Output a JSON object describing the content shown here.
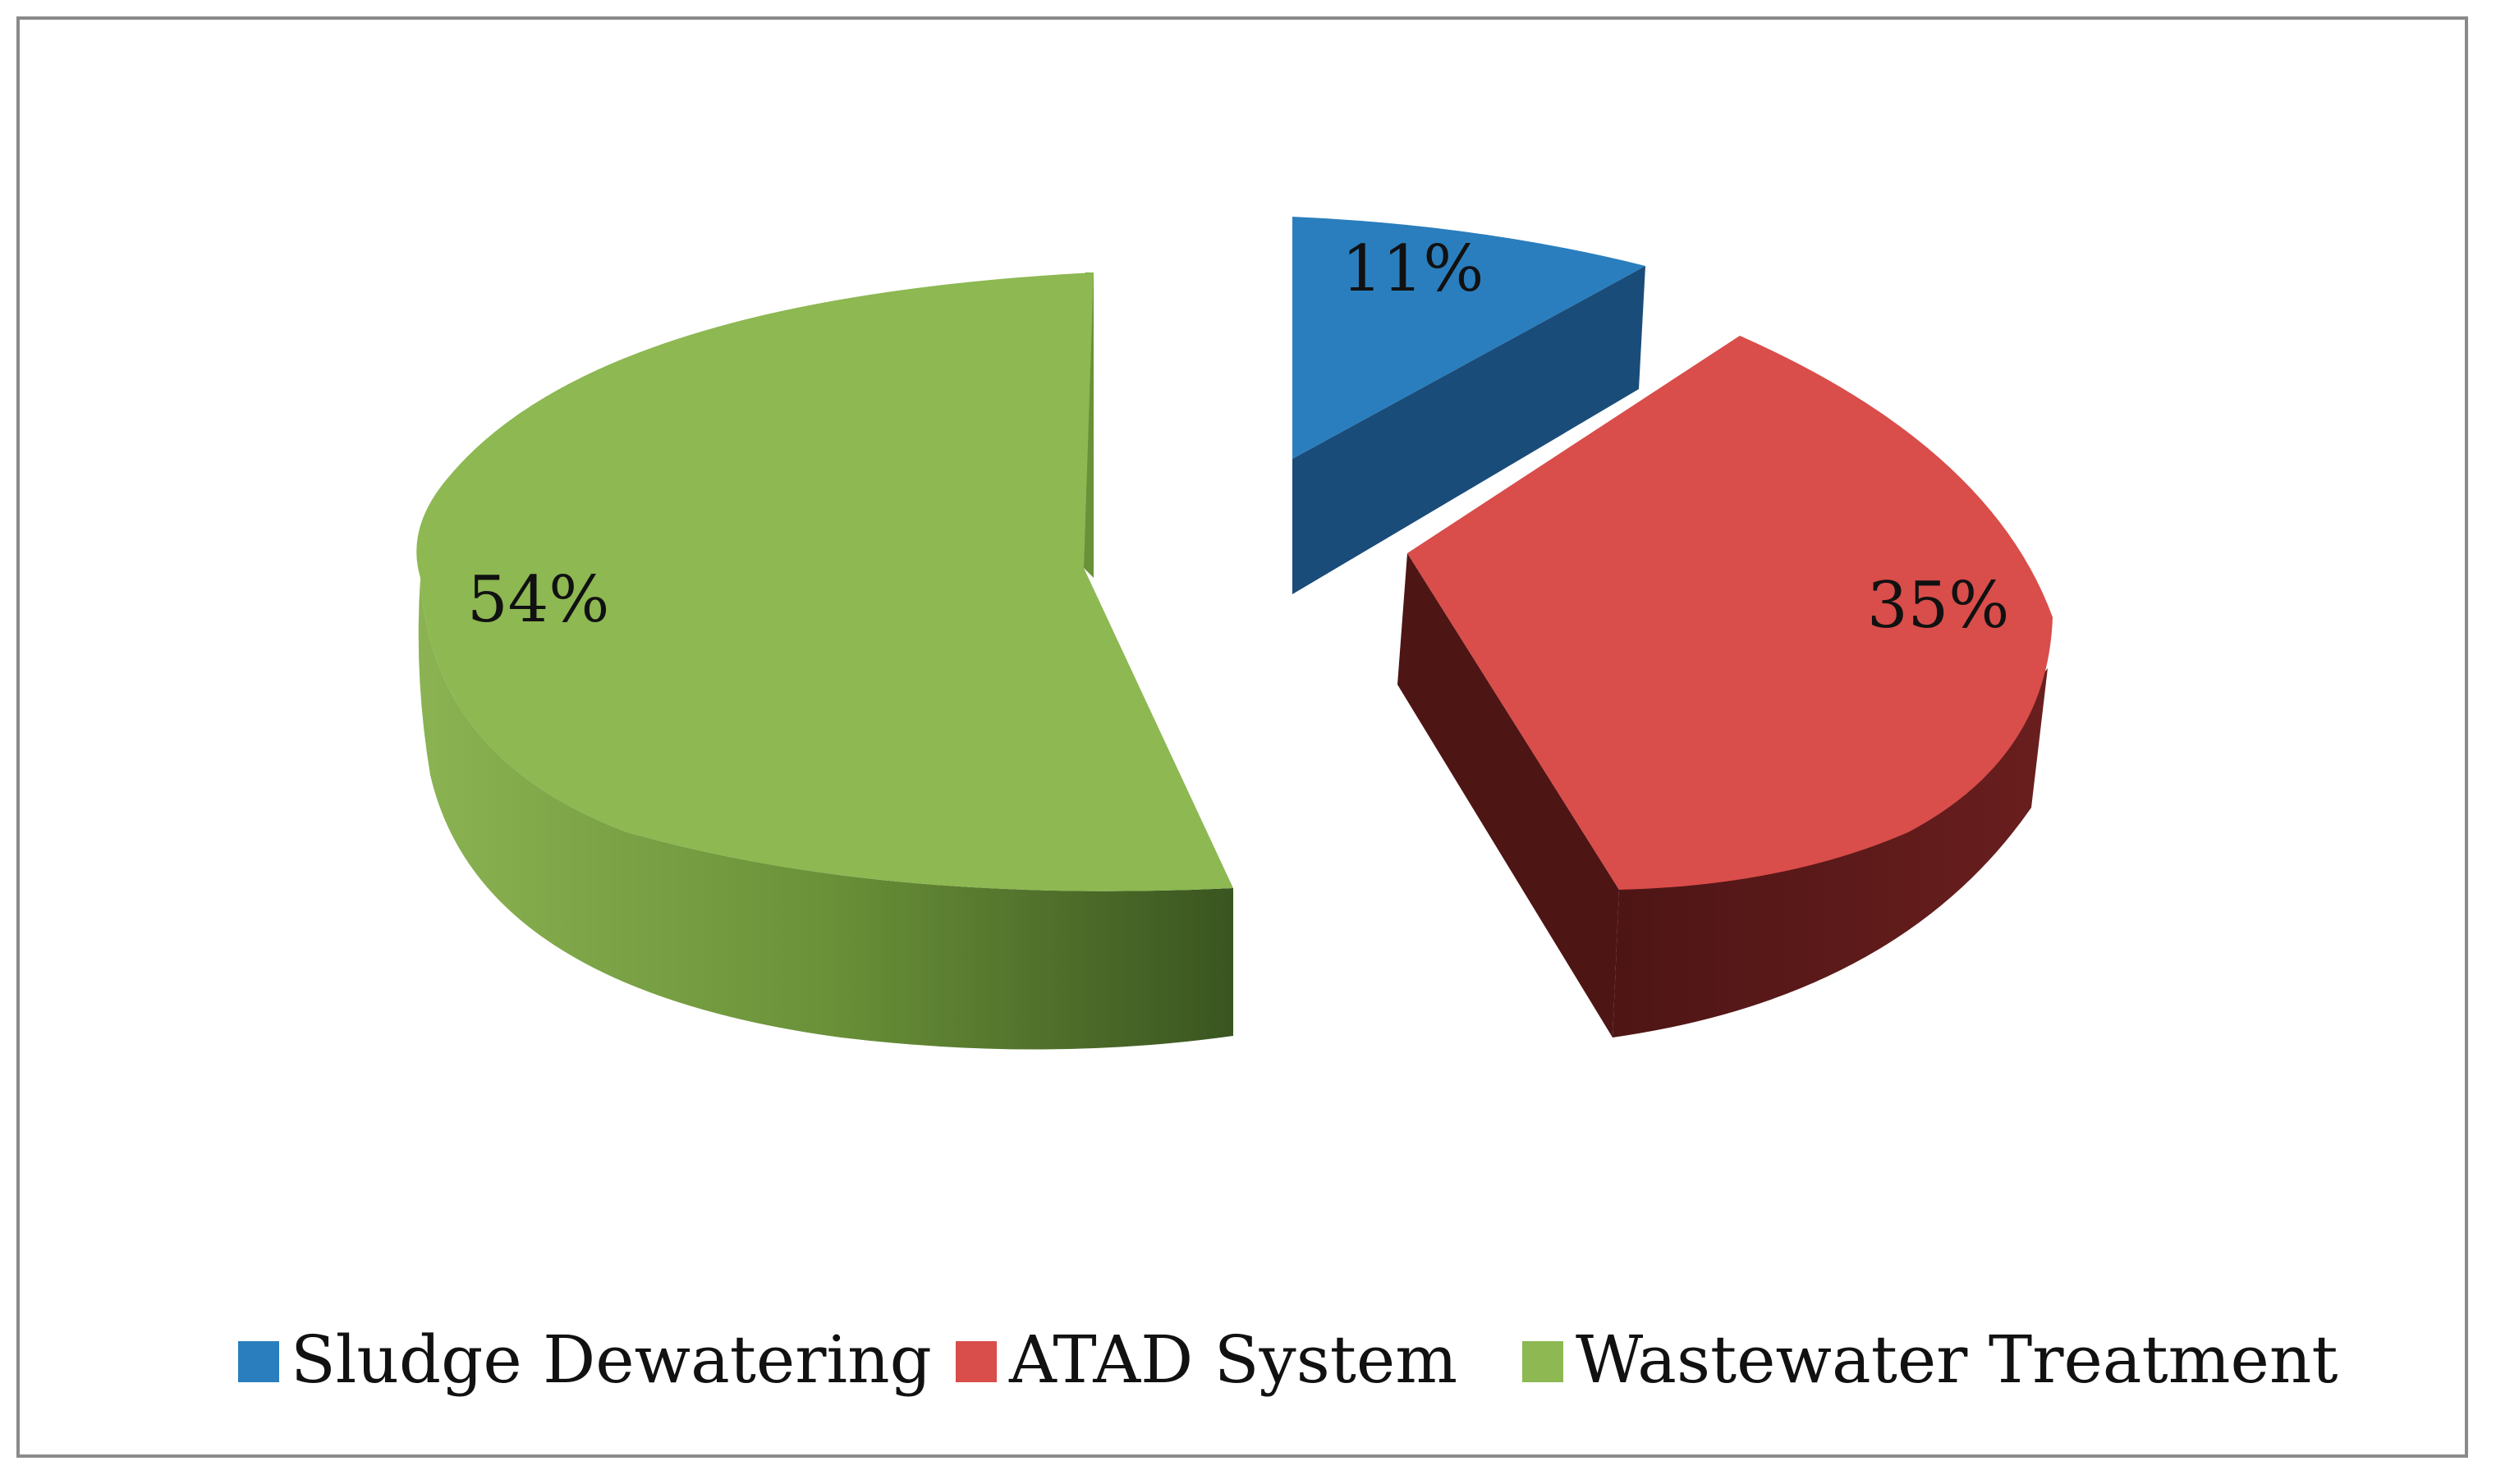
{
  "chart_data": {
    "type": "pie",
    "style": "3d-exploded",
    "title": "",
    "slices": [
      {
        "name": "Sludge Dewatering",
        "value": 11,
        "label": "11%",
        "color": "#2A7EBD",
        "side_color": "#1A4C7A",
        "exploded": true
      },
      {
        "name": "ATAD System",
        "value": 35,
        "label": "35%",
        "color": "#D94D4A",
        "side_color": "#5A1A1A",
        "exploded": false
      },
      {
        "name": "Wastewater Treatment",
        "value": 54,
        "label": "54%",
        "color": "#8DB852",
        "side_color": "#5E7E33",
        "exploded": false
      }
    ],
    "legend": {
      "position": "bottom",
      "entries": [
        "Sludge Dewatering",
        "ATAD System",
        "Wastewater Treatment"
      ]
    }
  }
}
